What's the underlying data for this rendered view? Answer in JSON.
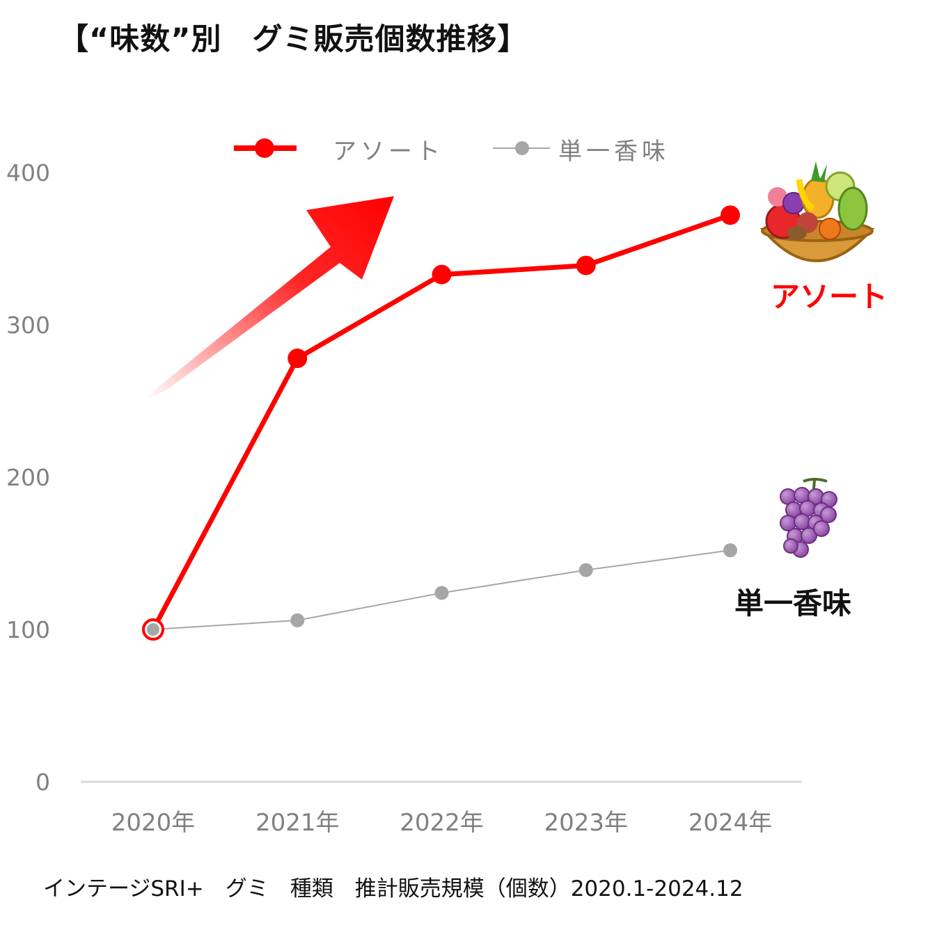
{
  "title": "【“味数”別　グミ販売個数推移】",
  "footer": "インテージSRI+　グミ　種類　推計販売規模（個数）2020.1-2024.12",
  "end_labels": {
    "assort": "アソート",
    "single": "単一香味"
  },
  "icons": {
    "assort": "fruit-basket-icon",
    "single": "grapes-icon",
    "trend": "up-arrow-icon"
  },
  "colors": {
    "assort": "#ff0000",
    "single": "#a6a6a6",
    "axis_text": "#808080",
    "baseline": "#d9d9d9"
  },
  "chart_data": {
    "type": "line",
    "categories": [
      "2020年",
      "2021年",
      "2022年",
      "2023年",
      "2024年"
    ],
    "series": [
      {
        "name": "アソート",
        "values": [
          100,
          278,
          333,
          339,
          372
        ]
      },
      {
        "name": "単一香味",
        "values": [
          100,
          106,
          124,
          139,
          152
        ]
      }
    ],
    "ylim": [
      0,
      400
    ],
    "yticks": [
      0,
      100,
      200,
      300,
      400
    ],
    "legend": "top",
    "grid": false
  }
}
